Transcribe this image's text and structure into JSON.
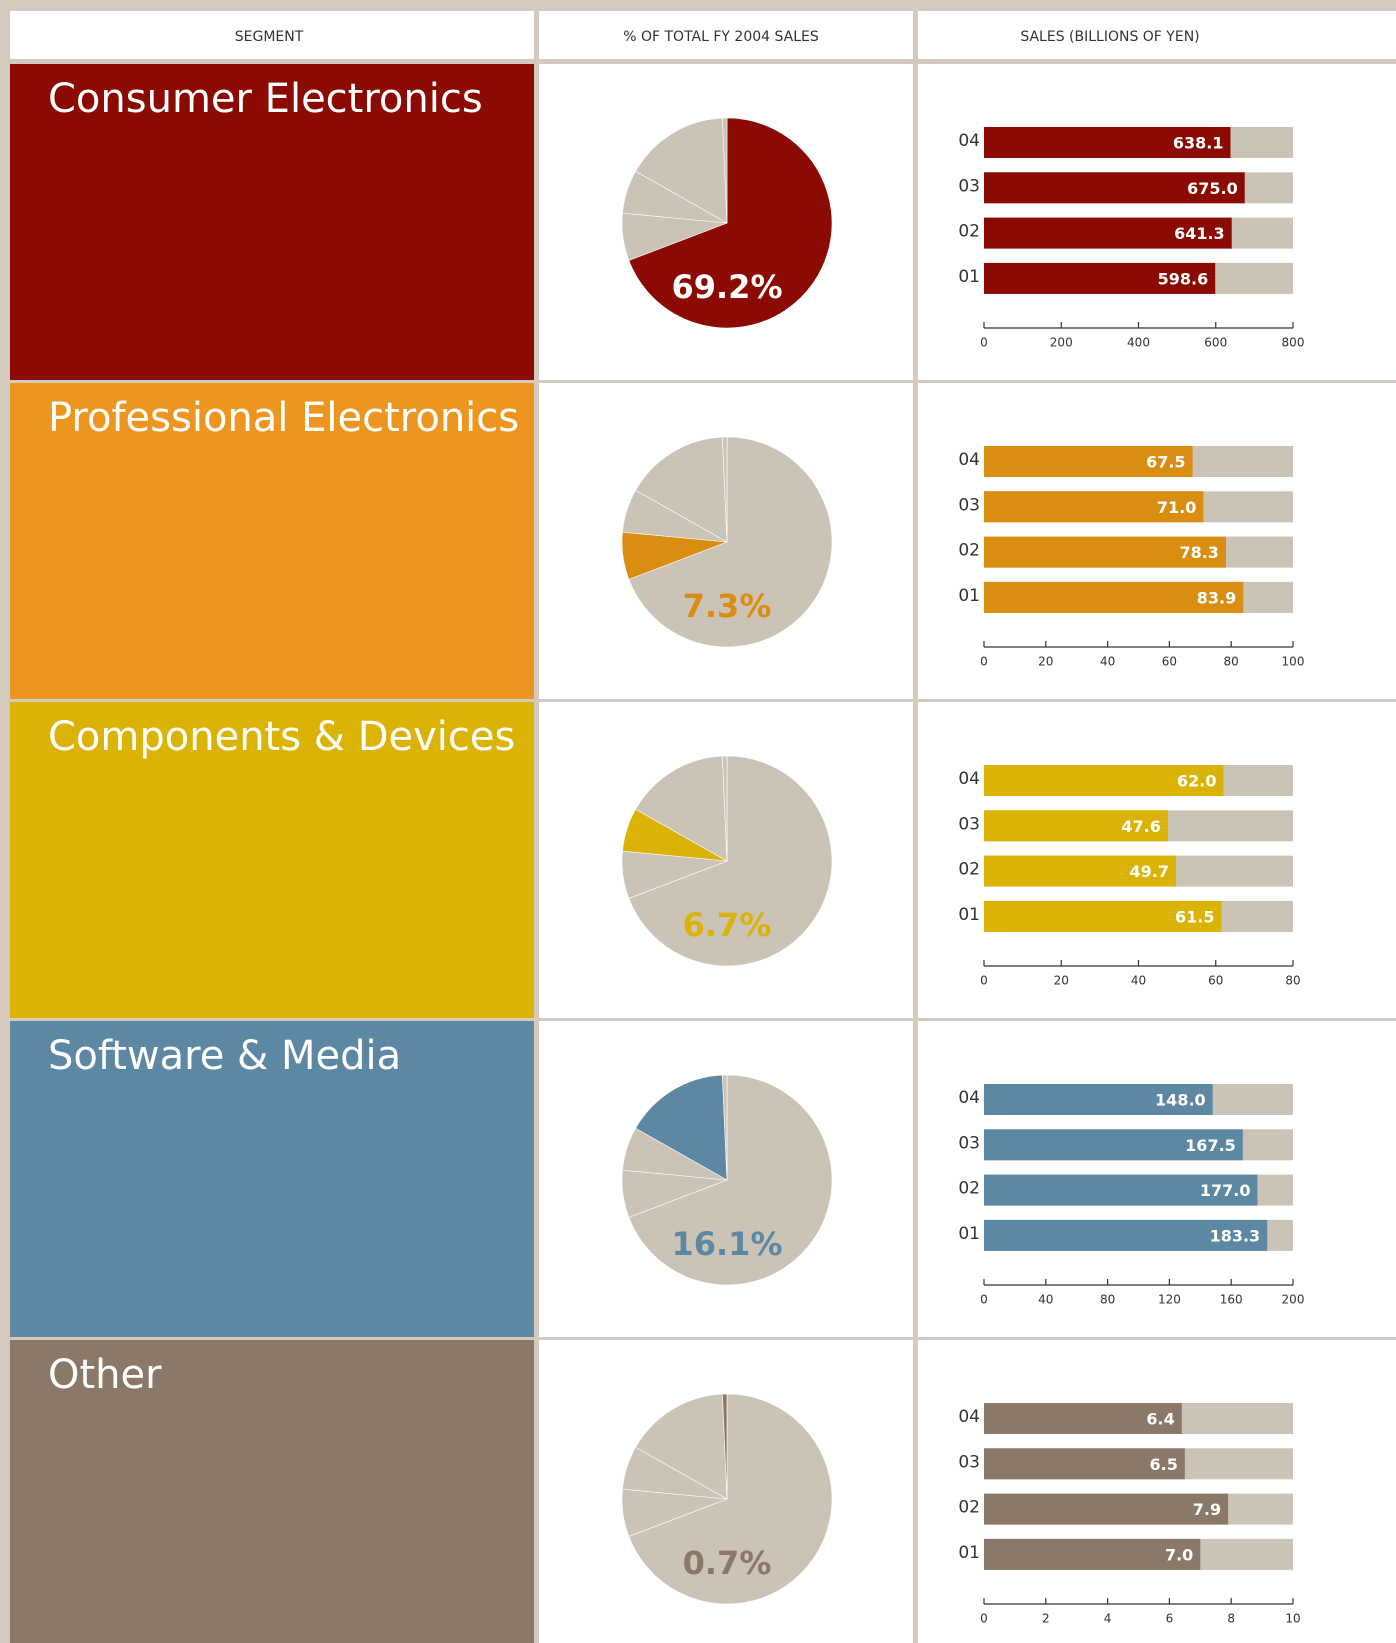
{
  "header": {
    "columns": [
      "SEGMENT",
      "% OF TOTAL FY 2004 SALES",
      "SALES (BILLIONS OF YEN)"
    ]
  },
  "chart_data": [
    {
      "type": "pie",
      "title": "Consumer Electronics",
      "panel_color": "#8b0a02",
      "label_color": "#ffffff",
      "values": [
        69.2,
        7.3,
        6.7,
        16.1,
        0.7
      ],
      "value_labels": [
        "69.2%",
        null,
        null,
        null,
        null
      ],
      "colors": [
        "#8b0a02",
        "#cbc3b6",
        "#cbc3b6",
        "#cbc3b6",
        "#cbc3b6"
      ]
    },
    {
      "type": "bar",
      "color": "#8b0a02",
      "categories": [
        "04",
        "03",
        "02",
        "01"
      ],
      "values": [
        638.1,
        675.0,
        641.3,
        598.6
      ],
      "value_labels": [
        "638.1",
        "675.0",
        "641.3",
        "598.6"
      ],
      "xlim": [
        0,
        800
      ],
      "xticks": [
        0,
        200,
        400,
        600,
        800
      ]
    },
    {
      "type": "pie",
      "title": "Professional Electronics",
      "panel_color": "#ec961f",
      "label_color": "#d98e12",
      "values": [
        69.2,
        7.3,
        6.7,
        16.1,
        0.7
      ],
      "value_labels": [
        null,
        "7.3%",
        null,
        null,
        null
      ],
      "colors": [
        "#cbc3b6",
        "#d98e12",
        "#cbc3b6",
        "#cbc3b6",
        "#cbc3b6"
      ]
    },
    {
      "type": "bar",
      "color": "#d98e12",
      "categories": [
        "04",
        "03",
        "02",
        "01"
      ],
      "values": [
        67.5,
        71.0,
        78.3,
        83.9
      ],
      "value_labels": [
        "67.5",
        "71.0",
        "78.3",
        "83.9"
      ],
      "xlim": [
        0,
        100
      ],
      "xticks": [
        0,
        20,
        40,
        60,
        80,
        100
      ]
    },
    {
      "type": "pie",
      "title": "Components & Devices",
      "panel_color": "#dbb307",
      "label_color": "#dbb307",
      "values": [
        69.2,
        7.3,
        6.7,
        16.1,
        0.7
      ],
      "value_labels": [
        null,
        null,
        "6.7%",
        null,
        null
      ],
      "colors": [
        "#cbc3b6",
        "#cbc3b6",
        "#dbb307",
        "#cbc3b6",
        "#cbc3b6"
      ]
    },
    {
      "type": "bar",
      "color": "#dbb307",
      "categories": [
        "04",
        "03",
        "02",
        "01"
      ],
      "values": [
        62.0,
        47.6,
        49.7,
        61.5
      ],
      "value_labels": [
        "62.0",
        "47.6",
        "49.7",
        "61.5"
      ],
      "xlim": [
        0,
        80
      ],
      "xticks": [
        0,
        20,
        40,
        60,
        80
      ]
    },
    {
      "type": "pie",
      "title": "Software & Media",
      "panel_color": "#5c88a4",
      "label_color": "#5c88a4",
      "values": [
        69.2,
        7.3,
        6.7,
        16.1,
        0.7
      ],
      "value_labels": [
        null,
        null,
        null,
        "16.1%",
        null
      ],
      "colors": [
        "#cbc3b6",
        "#cbc3b6",
        "#cbc3b6",
        "#5c88a4",
        "#cbc3b6"
      ]
    },
    {
      "type": "bar",
      "color": "#5c88a4",
      "categories": [
        "04",
        "03",
        "02",
        "01"
      ],
      "values": [
        148.0,
        167.5,
        177.0,
        183.3
      ],
      "value_labels": [
        "148.0",
        "167.5",
        "177.0",
        "183.3"
      ],
      "xlim": [
        0,
        200
      ],
      "xticks": [
        0,
        40,
        80,
        120,
        160,
        200
      ]
    },
    {
      "type": "pie",
      "title": "Other",
      "panel_color": "#8a7968",
      "label_color": "#8a7968",
      "values": [
        69.2,
        7.3,
        6.7,
        16.1,
        0.7
      ],
      "value_labels": [
        null,
        null,
        null,
        null,
        "0.7%"
      ],
      "colors": [
        "#cbc3b6",
        "#cbc3b6",
        "#cbc3b6",
        "#cbc3b6",
        "#8a7968"
      ]
    },
    {
      "type": "bar",
      "color": "#8a7968",
      "categories": [
        "04",
        "03",
        "02",
        "01"
      ],
      "values": [
        6.4,
        6.5,
        7.9,
        7.0
      ],
      "value_labels": [
        "6.4",
        "6.5",
        "7.9",
        "7.0"
      ],
      "xlim": [
        0,
        10
      ],
      "xticks": [
        0,
        2,
        4,
        6,
        8,
        10
      ]
    }
  ]
}
